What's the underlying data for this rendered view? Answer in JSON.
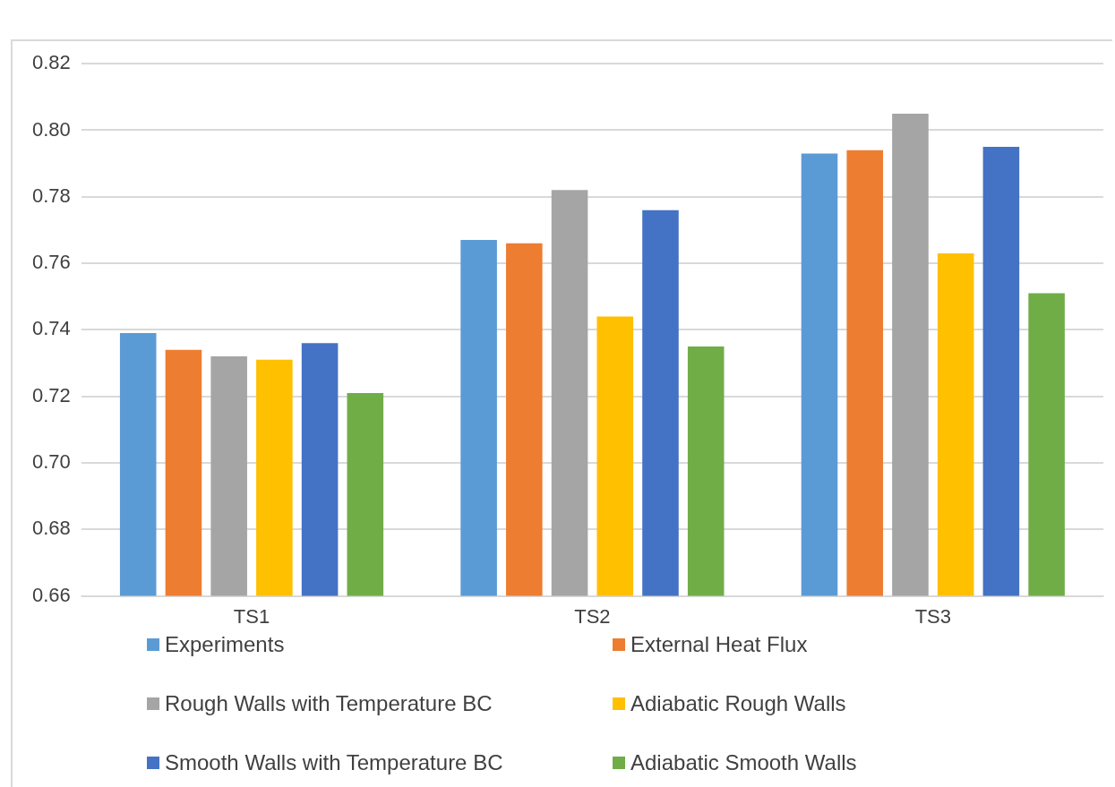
{
  "chart_data": {
    "type": "bar",
    "categories": [
      "TS1",
      "TS2",
      "TS3"
    ],
    "series": [
      {
        "name": "Experiments",
        "color": "#5b9bd5",
        "values": [
          0.739,
          0.767,
          0.793
        ]
      },
      {
        "name": "External Heat Flux",
        "color": "#ed7d31",
        "values": [
          0.734,
          0.766,
          0.794
        ]
      },
      {
        "name": "Rough Walls with Temperature BC",
        "color": "#a5a5a5",
        "values": [
          0.732,
          0.782,
          0.805
        ]
      },
      {
        "name": "Adiabatic Rough Walls",
        "color": "#ffc000",
        "values": [
          0.731,
          0.744,
          0.763
        ]
      },
      {
        "name": "Smooth Walls with Temperature BC",
        "color": "#4472c4",
        "values": [
          0.736,
          0.776,
          0.795
        ]
      },
      {
        "name": "Adiabatic Smooth Walls",
        "color": "#70ad47",
        "values": [
          0.721,
          0.735,
          0.751
        ]
      }
    ],
    "ylim": [
      0.66,
      0.82
    ],
    "yticks": [
      {
        "value": 0.66,
        "label": "0.66"
      },
      {
        "value": 0.68,
        "label": "0.68"
      },
      {
        "value": 0.7,
        "label": "0.70"
      },
      {
        "value": 0.72,
        "label": "0.72"
      },
      {
        "value": 0.74,
        "label": "0.74"
      },
      {
        "value": 0.76,
        "label": "0.76"
      },
      {
        "value": 0.78,
        "label": "0.78"
      },
      {
        "value": 0.8,
        "label": "0.80"
      },
      {
        "value": 0.82,
        "label": "0.82"
      }
    ],
    "grid": "y",
    "legend": "bottom"
  }
}
